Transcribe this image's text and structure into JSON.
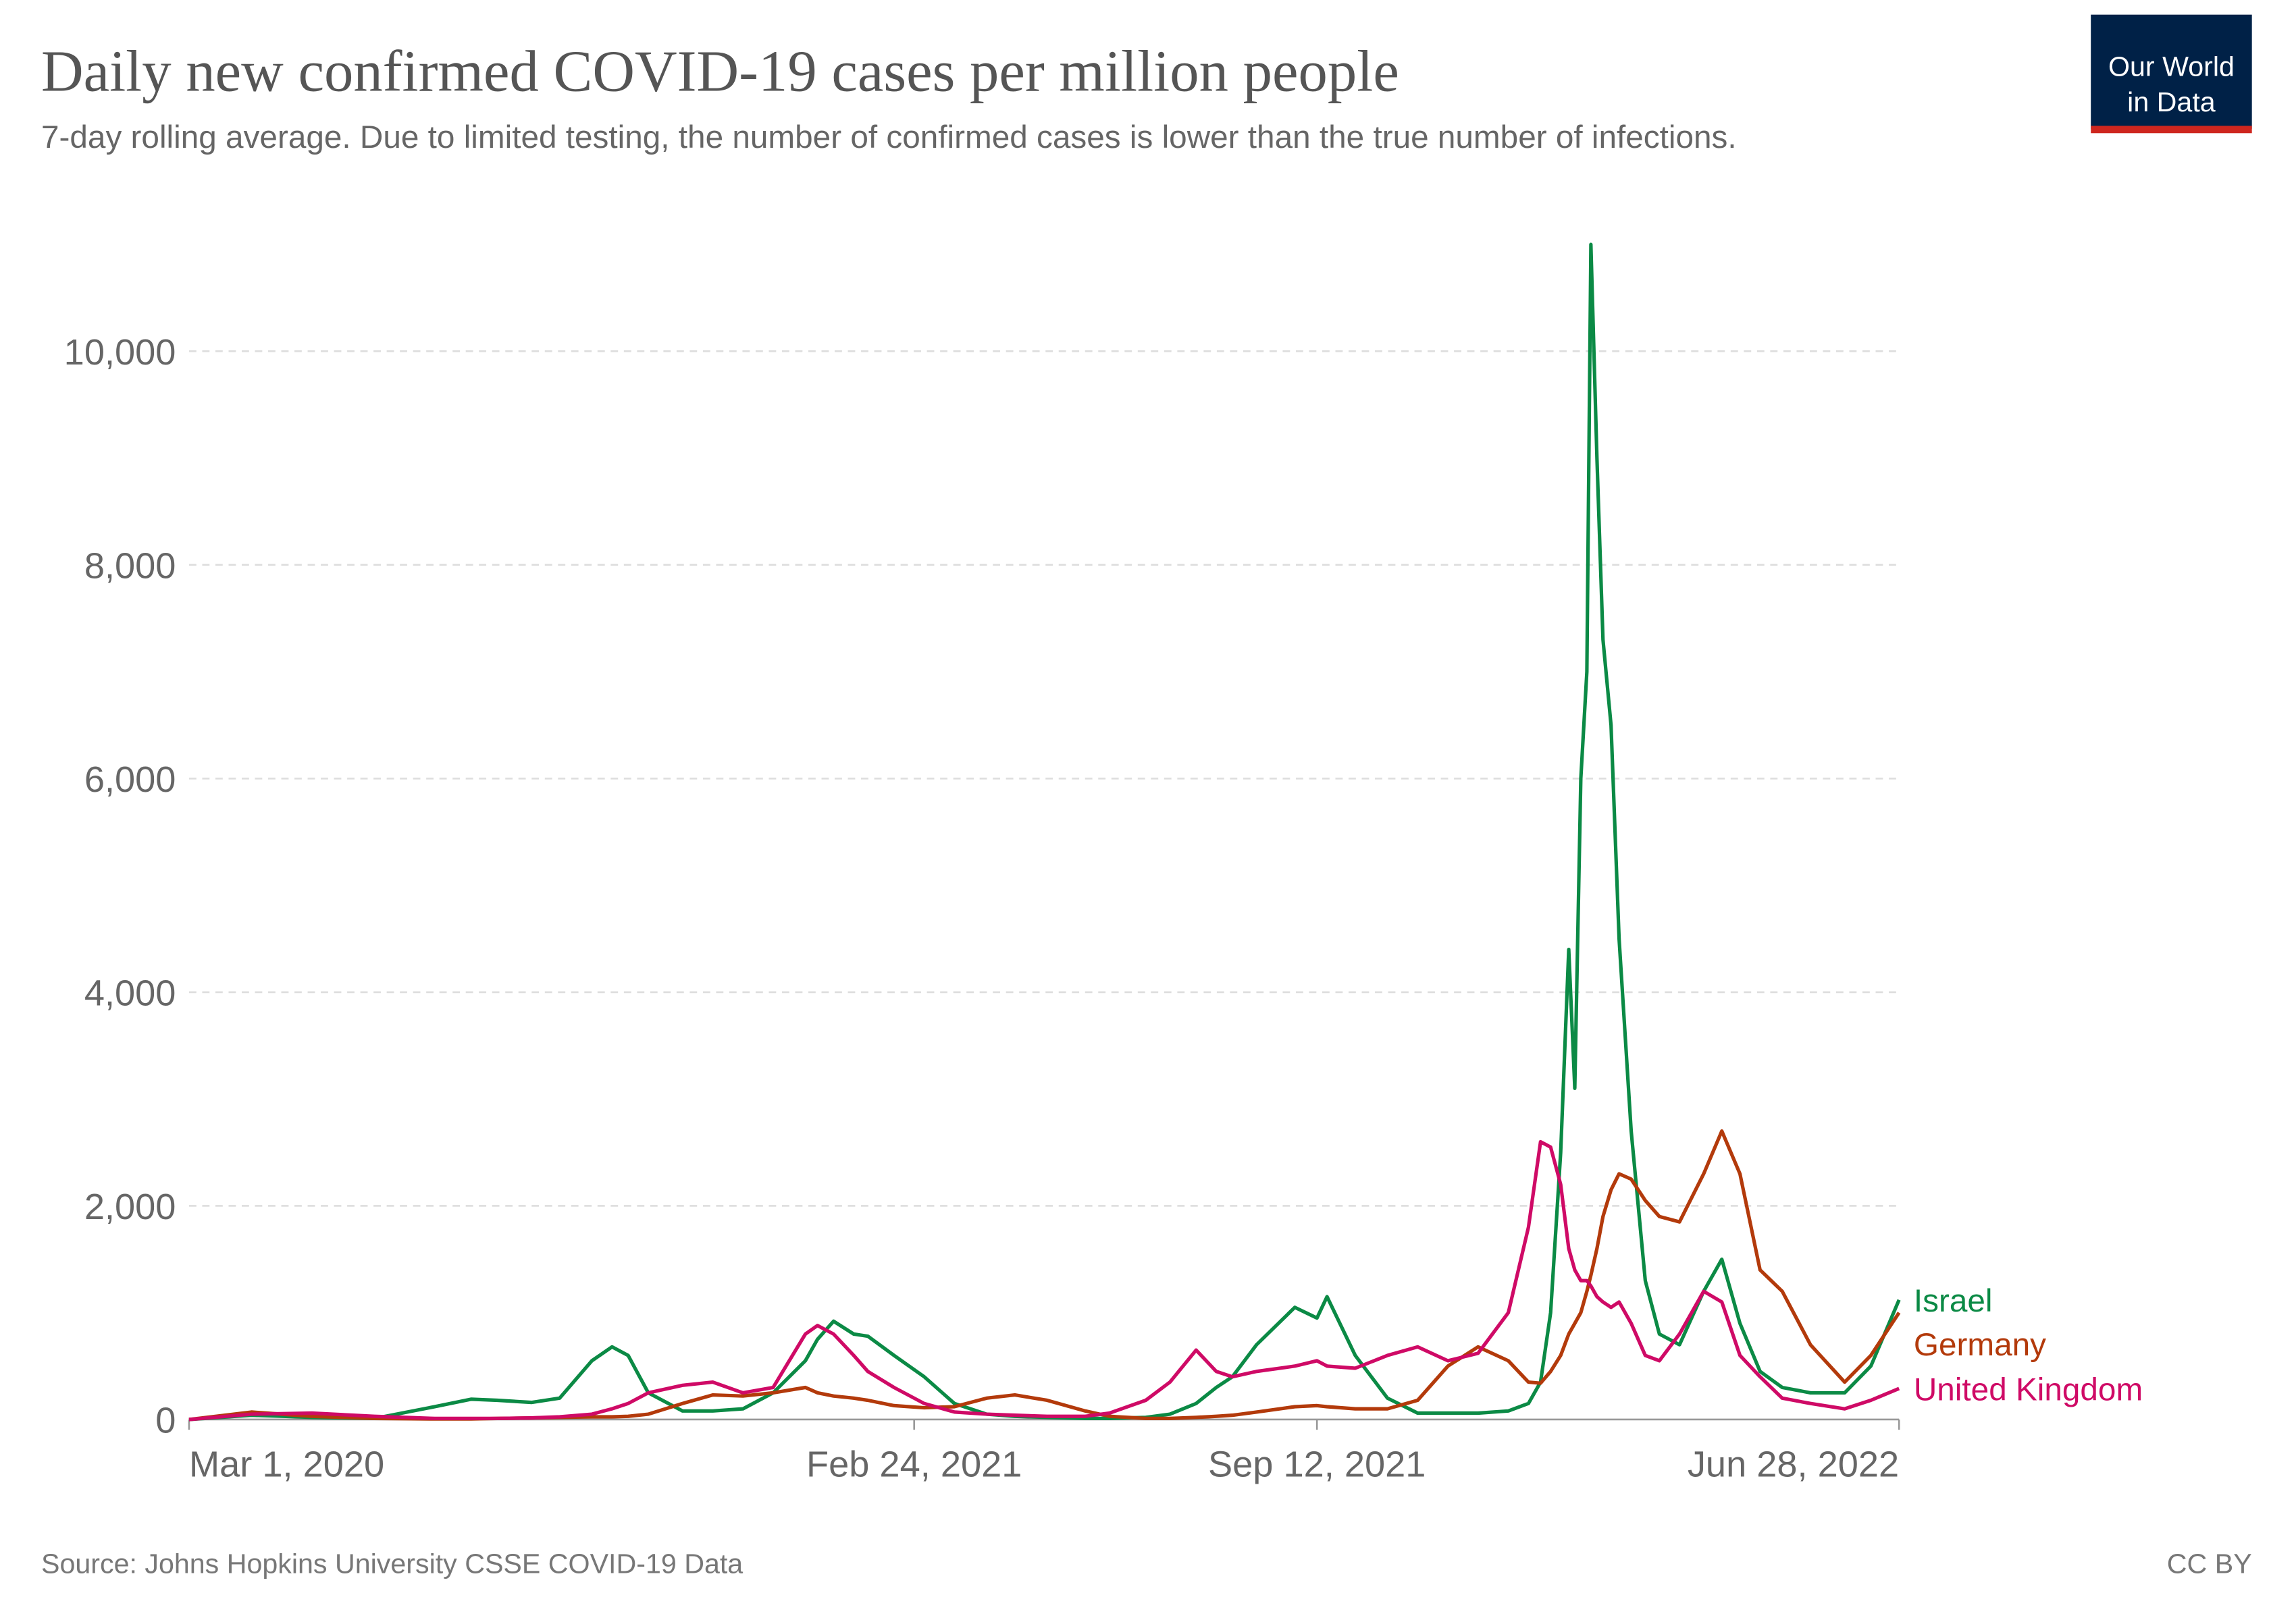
{
  "chart_data": {
    "type": "line",
    "title": "Daily new confirmed COVID-19 cases per million people",
    "subtitle": "7-day rolling average. Due to limited testing, the number of confirmed cases is lower than the true number of infections.",
    "logo": [
      "Our World",
      "in Data"
    ],
    "source": "Source: Johns Hopkins University CSSE COVID-19 Data",
    "license": "CC BY",
    "x": [
      "2020-03-01",
      "2020-04-01",
      "2020-05-01",
      "2020-06-01",
      "2020-07-01",
      "2020-07-19",
      "2020-08-01",
      "2020-08-18",
      "2020-09-01",
      "2020-09-17",
      "2020-09-27",
      "2020-10-05",
      "2020-10-15",
      "2020-11-01",
      "2020-11-16",
      "2020-12-01",
      "2020-12-16",
      "2021-01-01",
      "2021-01-07",
      "2021-01-15",
      "2021-01-25",
      "2021-02-01",
      "2021-02-14",
      "2021-03-01",
      "2021-03-16",
      "2021-04-01",
      "2021-04-15",
      "2021-05-01",
      "2021-05-20",
      "2021-06-01",
      "2021-06-19",
      "2021-07-01",
      "2021-07-14",
      "2021-07-24",
      "2021-08-01",
      "2021-08-13",
      "2021-09-01",
      "2021-09-12",
      "2021-09-17",
      "2021-10-01",
      "2021-10-17",
      "2021-11-01",
      "2021-11-16",
      "2021-12-01",
      "2021-12-16",
      "2021-12-26",
      "2022-01-01",
      "2022-01-06",
      "2022-01-11",
      "2022-01-15",
      "2022-01-18",
      "2022-01-21",
      "2022-01-24",
      "2022-01-26",
      "2022-01-29",
      "2022-02-01",
      "2022-02-05",
      "2022-02-09",
      "2022-02-15",
      "2022-02-22",
      "2022-03-01",
      "2022-03-11",
      "2022-03-23",
      "2022-04-01",
      "2022-04-10",
      "2022-04-20",
      "2022-05-01",
      "2022-05-15",
      "2022-06-01",
      "2022-06-14",
      "2022-06-28"
    ],
    "series": [
      {
        "name": "Israel",
        "color": "#0b8a45",
        "values": [
          0,
          40,
          20,
          10,
          120,
          190,
          180,
          160,
          200,
          550,
          680,
          600,
          250,
          80,
          80,
          100,
          250,
          550,
          750,
          920,
          800,
          780,
          600,
          400,
          150,
          50,
          30,
          20,
          10,
          10,
          20,
          50,
          150,
          300,
          400,
          700,
          1050,
          950,
          1150,
          600,
          200,
          60,
          60,
          60,
          80,
          150,
          350,
          1000,
          2500,
          4400,
          3100,
          6000,
          7000,
          11000,
          9000,
          7300,
          6500,
          4500,
          2700,
          1300,
          800,
          700,
          1200,
          1500,
          900,
          450,
          300,
          250,
          250,
          500,
          1120
        ]
      },
      {
        "name": "Germany",
        "color": "#b33a0b",
        "values": [
          0,
          70,
          30,
          10,
          5,
          5,
          10,
          15,
          20,
          25,
          25,
          30,
          50,
          150,
          230,
          220,
          250,
          300,
          250,
          220,
          200,
          180,
          130,
          110,
          120,
          200,
          230,
          180,
          80,
          30,
          10,
          10,
          20,
          30,
          40,
          70,
          120,
          130,
          120,
          100,
          100,
          180,
          500,
          680,
          550,
          350,
          340,
          450,
          600,
          800,
          900,
          1000,
          1200,
          1350,
          1600,
          1900,
          2150,
          2300,
          2250,
          2050,
          1900,
          1850,
          2300,
          2700,
          2300,
          1400,
          1200,
          700,
          350,
          600,
          1000
        ]
      },
      {
        "name": "United Kingdom",
        "color": "#cf0a66",
        "values": [
          0,
          50,
          60,
          30,
          10,
          10,
          10,
          15,
          25,
          50,
          100,
          150,
          250,
          320,
          350,
          250,
          300,
          800,
          880,
          800,
          600,
          450,
          300,
          150,
          70,
          50,
          40,
          30,
          30,
          60,
          180,
          350,
          650,
          450,
          400,
          450,
          500,
          550,
          500,
          480,
          600,
          680,
          550,
          620,
          1000,
          1800,
          2600,
          2550,
          2200,
          1600,
          1400,
          1300,
          1300,
          1250,
          1150,
          1100,
          1050,
          1100,
          900,
          600,
          550,
          800,
          1200,
          1100,
          600,
          400,
          200,
          150,
          100,
          180,
          290
        ]
      }
    ],
    "xlim": [
      "2020-03-01",
      "2022-06-28"
    ],
    "xticks": [
      {
        "value": "2020-03-01",
        "label": "Mar 1, 2020"
      },
      {
        "value": "2021-02-24",
        "label": "Feb 24, 2021"
      },
      {
        "value": "2021-09-12",
        "label": "Sep 12, 2021"
      },
      {
        "value": "2022-06-28",
        "label": "Jun 28, 2022"
      }
    ],
    "ylim": [
      0,
      11000
    ],
    "yticks": [
      0,
      {
        "value": 2000,
        "label": "2,000"
      },
      {
        "value": 4000,
        "label": "4,000"
      },
      {
        "value": 6000,
        "label": "6,000"
      },
      {
        "value": 8000,
        "label": "8,000"
      },
      {
        "value": 10000,
        "label": "10,000"
      }
    ],
    "grid": true
  }
}
